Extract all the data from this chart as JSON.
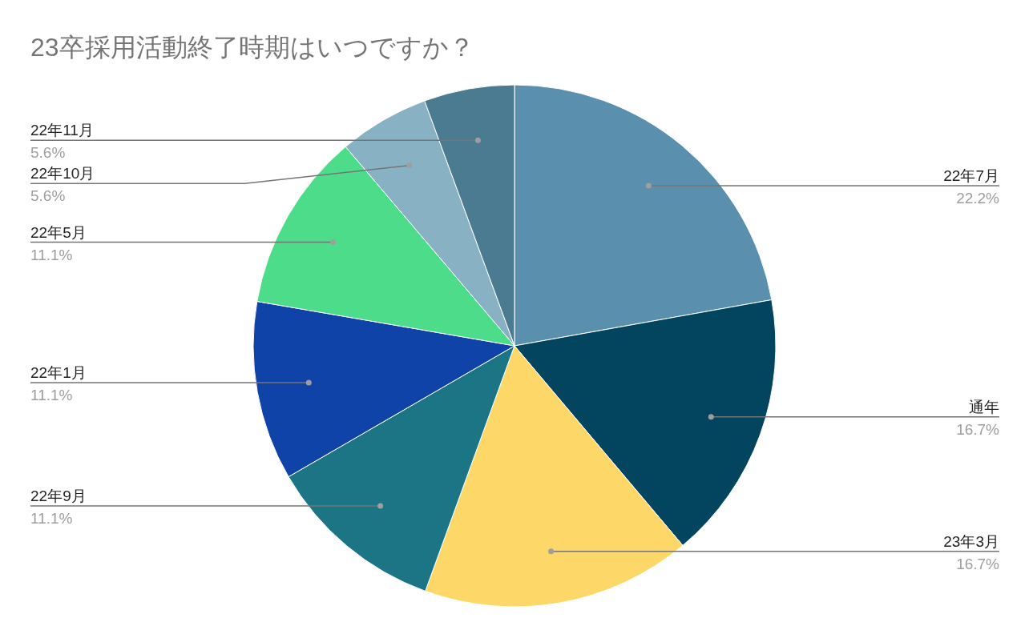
{
  "chart_data": {
    "type": "pie",
    "title": "23卒採用活動終了時期はいつですか？",
    "categories": [
      "22年7月",
      "通年",
      "23年3月",
      "22年9月",
      "22年1月",
      "22年5月",
      "22年10月",
      "22年11月"
    ],
    "values": [
      22.2,
      16.7,
      16.7,
      11.1,
      11.1,
      11.1,
      5.6,
      5.6
    ],
    "colors": [
      "#5a8fad",
      "#03445f",
      "#fdd868",
      "#1c7585",
      "#0f43a8",
      "#4cdc8a",
      "#89b1c4",
      "#4a7b91"
    ],
    "value_labels": [
      "22.2%",
      "16.7%",
      "16.7%",
      "11.1%",
      "11.1%",
      "11.1%",
      "5.6%",
      "5.6%"
    ]
  }
}
